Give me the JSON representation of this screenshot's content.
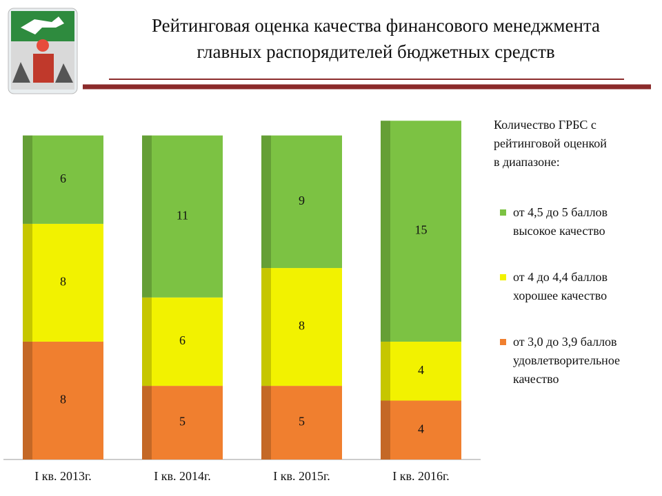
{
  "chart_data": {
    "type": "stacked-bar",
    "title": "Рейтинговая оценка качества финансового менеджмента\nглавных распорядителей бюджетных средств",
    "legend_title": "Количество ГРБС с\nрейтинговой оценкой\nв диапазоне:",
    "categories": [
      "I кв. 2013г.",
      "I кв. 2014г.",
      "I кв. 2015г.",
      "I кв. 2016г."
    ],
    "series": [
      {
        "name": "от 3,0 до 3,9 баллов\nудовлетворительное\nкачество",
        "color": "#f07f2f",
        "values": [
          8,
          5,
          5,
          4
        ]
      },
      {
        "name": "от 4 до 4,4 баллов\nхорошее качество",
        "color": "#f2f200",
        "values": [
          8,
          6,
          8,
          4
        ]
      },
      {
        "name": "от 4,5 до 5 баллов\nвысокое качество",
        "color": "#7cc243",
        "values": [
          6,
          11,
          9,
          15
        ]
      }
    ],
    "legend": "right"
  }
}
